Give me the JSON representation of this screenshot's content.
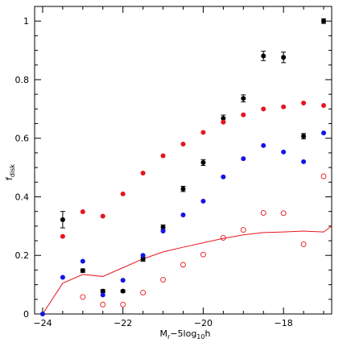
{
  "chart_data": {
    "type": "scatter",
    "title": "",
    "xlabel": {
      "main": "M",
      "sub1": "r",
      "mid": "−5log",
      "sub2": "10",
      "tail": "h"
    },
    "ylabel": {
      "main": "f",
      "sub": "disk"
    },
    "xlim": [
      -24.2,
      -16.8
    ],
    "ylim": [
      0,
      1.05
    ],
    "grid": false,
    "x_major_ticks": [
      -24,
      -22,
      -20,
      -18
    ],
    "x_tick_labels": [
      "−24",
      "−22",
      "−20",
      "−18"
    ],
    "x_minor_step": 0.5,
    "y_major_ticks": [
      0,
      0.2,
      0.4,
      0.6,
      0.8,
      1.0
    ],
    "y_tick_labels": [
      "0",
      "0.2",
      "0.4",
      "0.6",
      "0.8",
      "1"
    ],
    "y_minor_step": 0.05,
    "colors": {
      "black": "#000000",
      "red": "#e8141e",
      "blue": "#1414e6",
      "line": "#e8141e"
    },
    "series": [
      {
        "style": "black-filled-errorbar",
        "x": [
          -23.5,
          -23.0,
          -22.5,
          -22.0,
          -21.5,
          -21.0,
          -20.5,
          -20.0,
          -19.5,
          -19.0,
          -18.5,
          -18.0,
          -17.5,
          -17.0
        ],
        "y": [
          0.322,
          0.148,
          0.078,
          0.078,
          0.187,
          0.296,
          0.427,
          0.517,
          0.668,
          0.736,
          0.881,
          0.876,
          0.607,
          1.0
        ],
        "err": [
          0.028,
          0.006,
          0.005,
          0.004,
          0.007,
          0.008,
          0.009,
          0.01,
          0.011,
          0.012,
          0.016,
          0.018,
          0.009,
          0.008
        ]
      },
      {
        "style": "red-filled",
        "x": [
          -23.5,
          -23.0,
          -22.5,
          -22.0,
          -21.5,
          -21.0,
          -20.5,
          -20.0,
          -19.5,
          -19.0,
          -18.5,
          -18.0,
          -17.5,
          -17.0
        ],
        "y": [
          0.265,
          0.349,
          0.334,
          0.41,
          0.481,
          0.54,
          0.58,
          0.62,
          0.655,
          0.68,
          0.7,
          0.707,
          0.72,
          0.712
        ]
      },
      {
        "style": "blue-filled",
        "x": [
          -24.0,
          -23.5,
          -23.0,
          -22.5,
          -22.0,
          -21.5,
          -21.0,
          -20.5,
          -20.0,
          -19.5,
          -19.0,
          -18.5,
          -18.0,
          -17.5,
          -17.0
        ],
        "y": [
          0.0,
          0.125,
          0.18,
          0.065,
          0.115,
          0.2,
          0.283,
          0.338,
          0.385,
          0.468,
          0.53,
          0.575,
          0.553,
          0.52,
          0.618
        ]
      },
      {
        "style": "red-open",
        "x": [
          -23.0,
          -22.5,
          -22.0,
          -21.5,
          -21.0,
          -20.5,
          -20.0,
          -19.5,
          -19.0,
          -18.5,
          -18.0,
          -17.5,
          -17.0
        ],
        "y": [
          0.058,
          0.032,
          0.032,
          0.073,
          0.117,
          0.168,
          0.203,
          0.26,
          0.287,
          0.345,
          0.344,
          0.238,
          0.47
        ]
      },
      {
        "style": "red-line",
        "x": [
          -24.0,
          -23.5,
          -23.0,
          -22.5,
          -22.0,
          -21.5,
          -21.0,
          -20.5,
          -20.0,
          -19.5,
          -19.0,
          -18.5,
          -18.0,
          -17.5,
          -17.0,
          -16.8
        ],
        "y": [
          0.0,
          0.105,
          0.135,
          0.128,
          0.158,
          0.188,
          0.212,
          0.228,
          0.243,
          0.258,
          0.27,
          0.278,
          0.28,
          0.283,
          0.28,
          0.3
        ]
      }
    ]
  }
}
